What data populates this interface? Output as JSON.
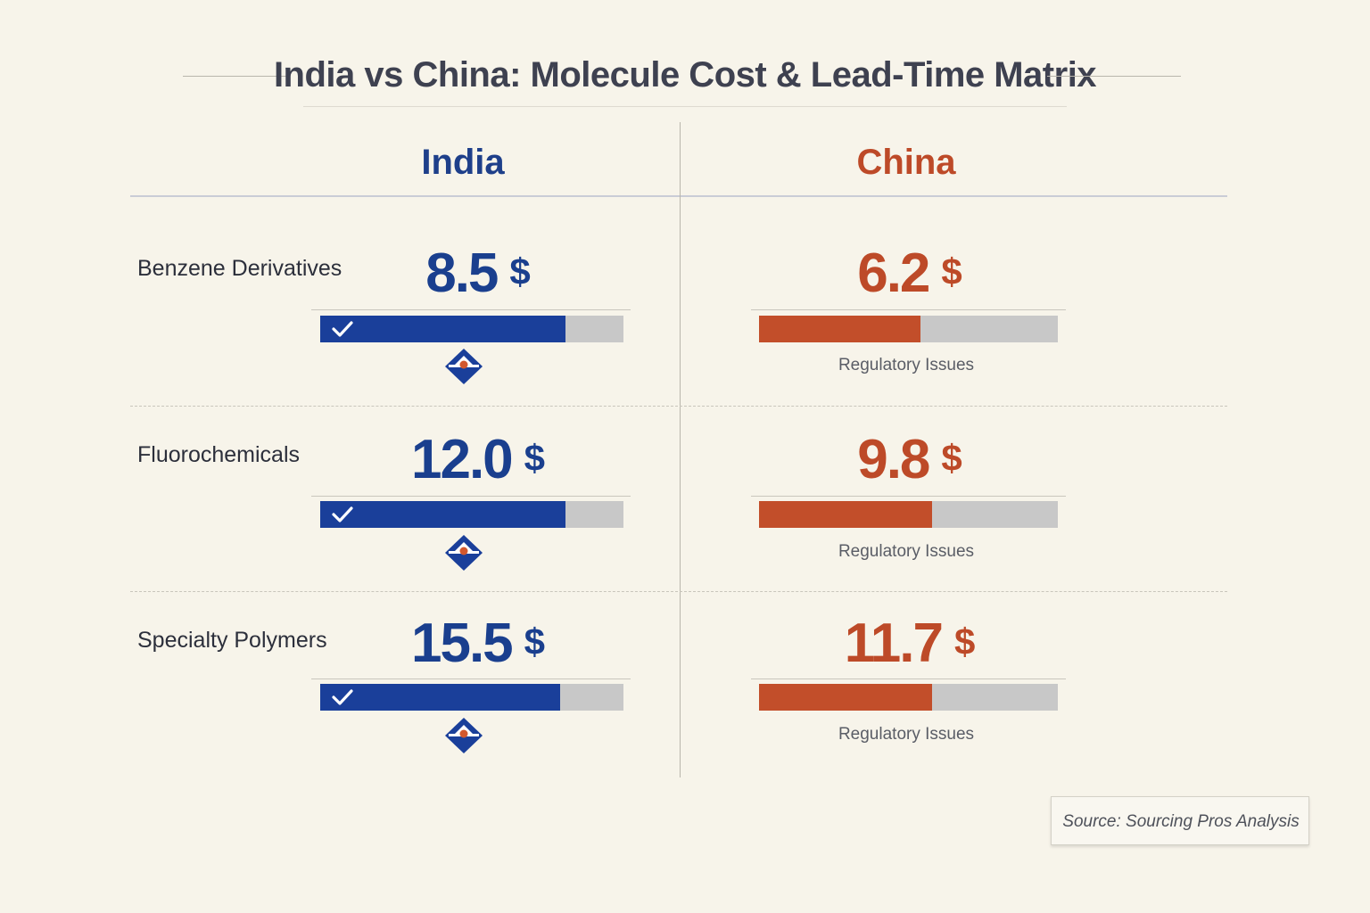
{
  "title": "India vs China: Molecule Cost & Lead-Time Matrix",
  "columns": {
    "india": "India",
    "china": "China"
  },
  "currency_symbol": "$",
  "colors": {
    "india": "#1a3f9a",
    "china": "#c24e2a",
    "track": "#c8c8c8",
    "background": "#f7f4ea"
  },
  "chart_data": {
    "type": "bar",
    "categories": [
      "Benzene Derivatives",
      "Fluorochemicals",
      "Specialty Polymers"
    ],
    "series": [
      {
        "name": "India",
        "values": [
          8.5,
          12.0,
          15.5
        ],
        "display": [
          "8.5",
          "12.0",
          "15.5"
        ],
        "bar_fill": [
          0.81,
          0.81,
          0.79
        ]
      },
      {
        "name": "China",
        "values": [
          6.2,
          9.8,
          11.7
        ],
        "display": [
          "6.2",
          "9.8",
          "11.7"
        ],
        "bar_fill": [
          0.54,
          0.58,
          0.58
        ]
      }
    ],
    "annotations": {
      "india": "check-icon",
      "china": "Regulatory Issues"
    }
  },
  "rows": [
    {
      "label": "Benzene Derivatives",
      "india_value": "8.5",
      "china_value": "6.2",
      "china_note": "Regulatory Issues"
    },
    {
      "label": "Fluorochemicals",
      "india_value": "12.0",
      "china_value": "9.8",
      "china_note": "Regulatory Issues"
    },
    {
      "label": "Specialty Polymers",
      "india_value": "15.5",
      "china_value": "11.7",
      "china_note": "Regulatory Issues"
    }
  ],
  "source": "Source: Sourcing Pros Analysis"
}
